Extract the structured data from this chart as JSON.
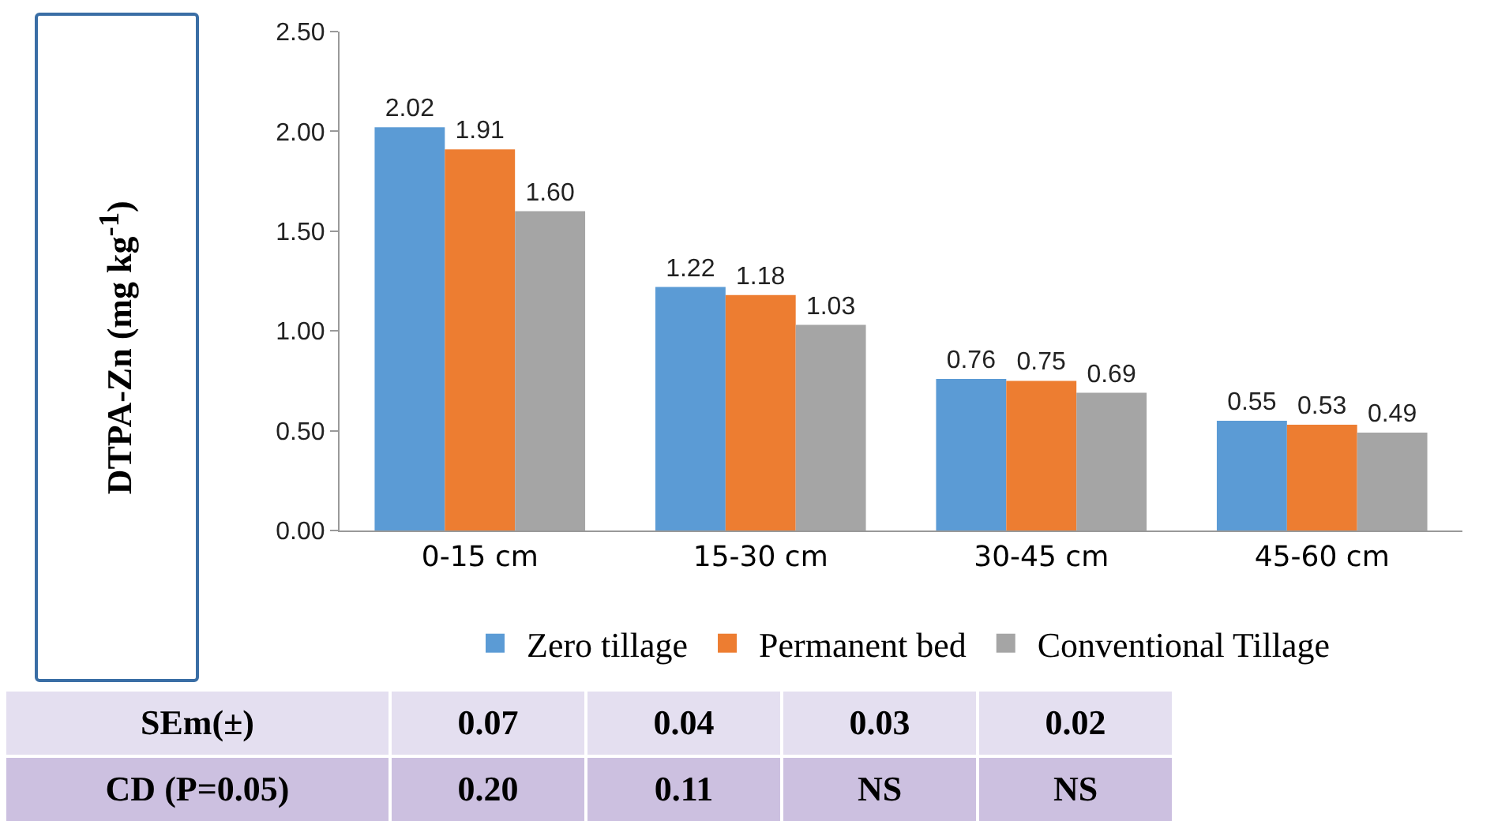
{
  "chart_data": {
    "type": "bar",
    "ylabel": "DTPA-Zn (mg kg$^{-1}$)",
    "categories": [
      "0-15 cm",
      "15-30 cm",
      "30-45 cm",
      "45-60 cm"
    ],
    "series": [
      {
        "name": "Zero tillage",
        "color": "#5b9bd5",
        "values": [
          2.02,
          1.22,
          0.76,
          0.55
        ],
        "value_labels": [
          "2.02",
          "1.22",
          "0.76",
          "0.55"
        ]
      },
      {
        "name": "Permanent bed",
        "color": "#ed7d31",
        "values": [
          1.91,
          1.18,
          0.75,
          0.53
        ],
        "value_labels": [
          "1.91",
          "1.18",
          "0.75",
          "0.53"
        ]
      },
      {
        "name": "Conventional Tillage",
        "color": "#a5a5a5",
        "values": [
          1.6,
          1.03,
          0.69,
          0.49
        ],
        "value_labels": [
          "1.60",
          "1.03",
          "0.69",
          "0.49"
        ]
      }
    ],
    "ylim": [
      0,
      2.5
    ],
    "yticks": [
      {
        "value": 0,
        "label": "0.00"
      },
      {
        "value": 0.5,
        "label": "0.50"
      },
      {
        "value": 1,
        "label": "1.00"
      },
      {
        "value": 1.5,
        "label": "1.50"
      },
      {
        "value": 2,
        "label": "2.00"
      },
      {
        "value": 2.5,
        "label": "2.50"
      }
    ],
    "grid": false,
    "legend": "bottom",
    "annotations": [
      "SEm(±)",
      "0.07",
      "0.04",
      "0.03",
      "0.02",
      "CD  (P=0.05)",
      "0.20",
      "0.11",
      "NS",
      "NS"
    ]
  }
}
